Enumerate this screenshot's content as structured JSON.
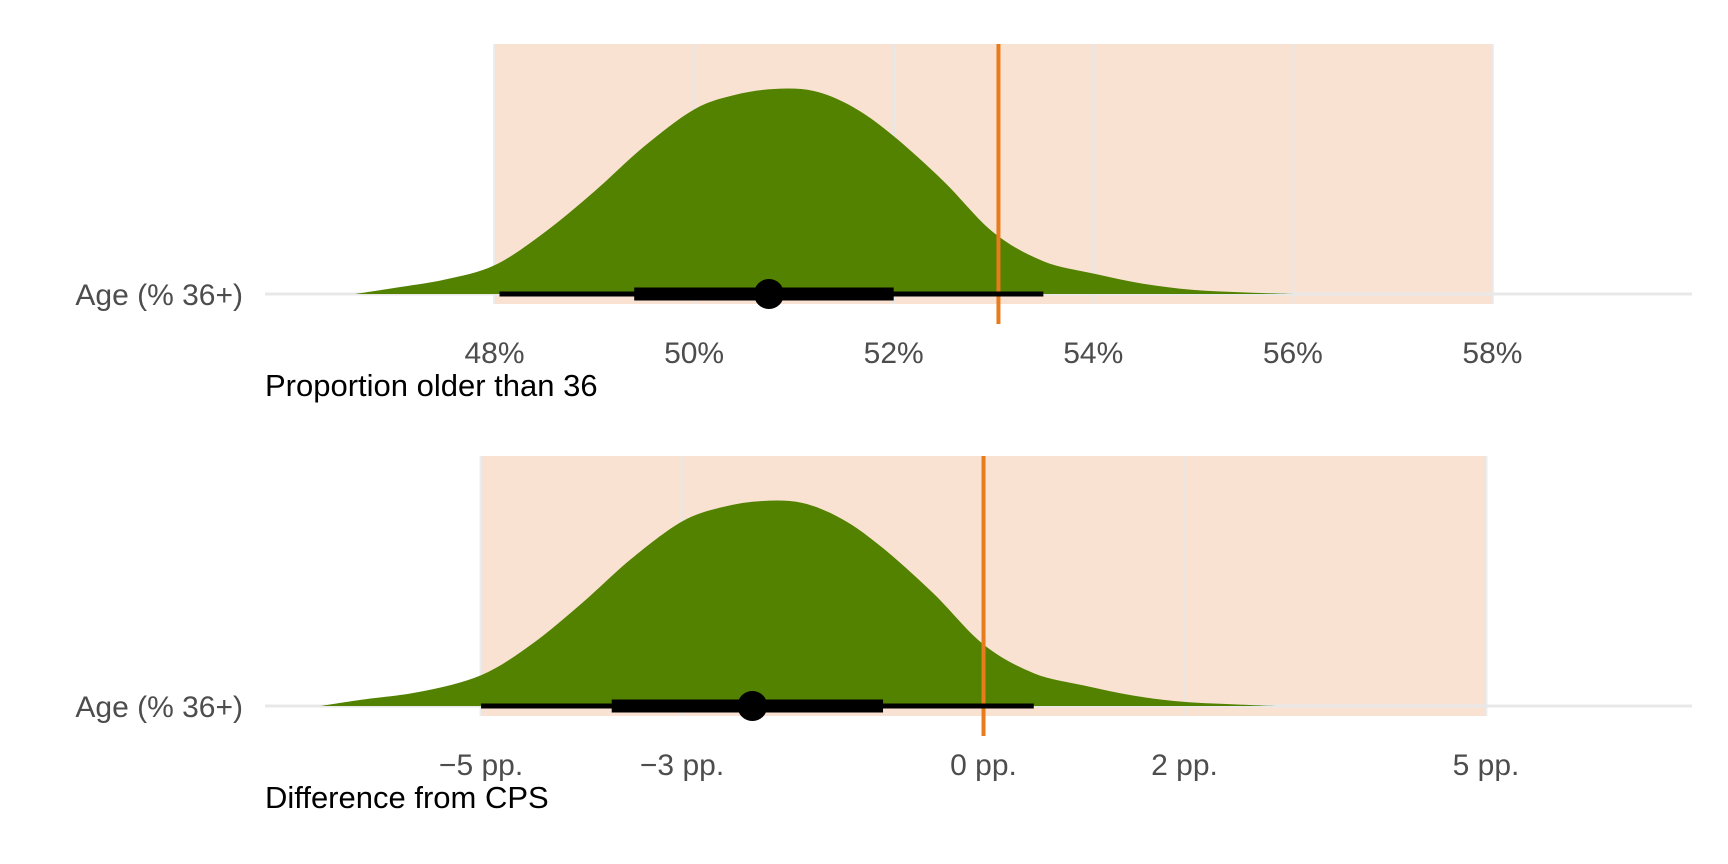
{
  "colors": {
    "band": "#fae2d2",
    "grid": "#e8e8e8",
    "density": "#538200",
    "reference": "#e87b1c",
    "interval": "#000000"
  },
  "chart_data": [
    {
      "type": "density",
      "xlabel": "Proportion older than 36",
      "category": "Age (% 36+)",
      "xlim": [
        45.7,
        60.0
      ],
      "x_ticks": [
        {
          "value": 48,
          "label": "48%"
        },
        {
          "value": 50,
          "label": "50%"
        },
        {
          "value": 52,
          "label": "52%"
        },
        {
          "value": 54,
          "label": "54%"
        },
        {
          "value": 56,
          "label": "56%"
        },
        {
          "value": 58,
          "label": "58%"
        }
      ],
      "shaded_range": [
        48,
        58
      ],
      "reference_line": 53.05,
      "point_estimate": 50.75,
      "interval_inner": [
        49.4,
        52.0
      ],
      "interval_outer": [
        48.05,
        53.5
      ],
      "density": {
        "x": [
          46.6,
          47.0,
          47.5,
          48.0,
          48.5,
          49.0,
          49.5,
          50.0,
          50.4,
          50.8,
          51.2,
          51.6,
          52.0,
          52.5,
          53.0,
          53.5,
          54.0,
          54.5,
          55.0,
          55.5,
          56.0
        ],
        "y": [
          0.0,
          0.03,
          0.07,
          0.14,
          0.3,
          0.5,
          0.72,
          0.9,
          0.97,
          1.0,
          0.99,
          0.91,
          0.77,
          0.55,
          0.3,
          0.16,
          0.1,
          0.05,
          0.02,
          0.008,
          0.0
        ]
      }
    },
    {
      "type": "density",
      "xlabel": "Difference from CPS",
      "category": "Age (% 36+)",
      "xlim": [
        -7.15,
        7.05
      ],
      "x_ticks": [
        {
          "value": -5,
          "label": "−5 pp."
        },
        {
          "value": -3,
          "label": "−3 pp."
        },
        {
          "value": 0,
          "label": "0 pp."
        },
        {
          "value": 2,
          "label": "2 pp."
        },
        {
          "value": 5,
          "label": "5 pp."
        }
      ],
      "shaded_range": [
        -5,
        5
      ],
      "reference_line": 0,
      "point_estimate": -2.3,
      "interval_inner": [
        -3.7,
        -1.0
      ],
      "interval_outer": [
        -5.0,
        0.5
      ],
      "density": {
        "x": [
          -6.6,
          -6.2,
          -5.6,
          -5.0,
          -4.5,
          -4.0,
          -3.5,
          -3.0,
          -2.6,
          -2.2,
          -1.8,
          -1.4,
          -1.0,
          -0.5,
          0.0,
          0.5,
          1.0,
          1.5,
          2.0,
          2.5,
          2.9
        ],
        "y": [
          0.0,
          0.03,
          0.07,
          0.15,
          0.3,
          0.5,
          0.72,
          0.9,
          0.97,
          1.0,
          0.99,
          0.91,
          0.77,
          0.55,
          0.3,
          0.16,
          0.1,
          0.05,
          0.02,
          0.008,
          0.0
        ]
      }
    }
  ]
}
